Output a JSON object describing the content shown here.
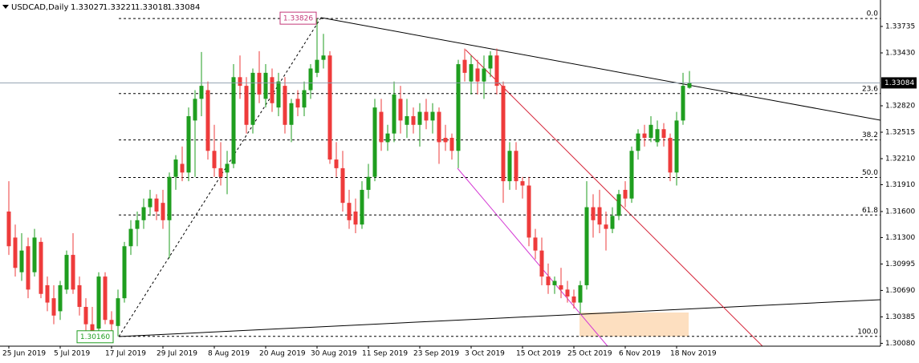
{
  "chart_data": {
    "type": "candlestick",
    "symbol": "USDCAD,Daily",
    "categories": [
      "25 Jun 2019",
      null,
      null,
      null,
      null,
      null,
      null,
      null,
      "5 Jul 2019",
      null,
      null,
      null,
      null,
      null,
      null,
      null,
      "17 Jul 2019",
      null,
      null,
      null,
      null,
      null,
      null,
      null,
      "29 Jul 2019",
      null,
      null,
      null,
      null,
      null,
      null,
      null,
      "8 Aug 2019",
      null,
      null,
      null,
      null,
      null,
      null,
      null,
      "20 Aug 2019",
      null,
      null,
      null,
      null,
      null,
      null,
      null,
      "30 Aug 2019",
      null,
      null,
      null,
      null,
      null,
      null,
      null,
      "11 Sep 2019",
      null,
      null,
      null,
      null,
      null,
      null,
      null,
      "23 Sep 2019",
      null,
      null,
      null,
      null,
      null,
      null,
      null,
      "3 Oct 2019",
      null,
      null,
      null,
      null,
      null,
      null,
      null,
      "15 Oct 2019",
      null,
      null,
      null,
      null,
      null,
      null,
      null,
      "25 Oct 2019",
      null,
      null,
      null,
      null,
      null,
      null,
      null,
      "6 Nov 2019",
      null,
      null,
      null,
      null,
      null,
      null,
      null,
      "18 Nov 2019",
      null,
      null
    ],
    "open": [
      1.316,
      1.313,
      1.309,
      1.312,
      1.309,
      1.3125,
      1.3075,
      1.306,
      1.3045,
      1.307,
      1.311,
      1.3075,
      1.305,
      1.303,
      1.3025,
      1.3085,
      1.3035,
      1.3028,
      1.306,
      1.312,
      1.314,
      1.315,
      1.3165,
      1.3175,
      1.317,
      1.315,
      1.32,
      1.3215,
      1.3205,
      1.3265,
      1.329,
      1.33,
      1.323,
      1.321,
      1.3205,
      1.3215,
      1.3315,
      1.3305,
      1.326,
      1.332,
      1.329,
      1.3315,
      1.328,
      1.3305,
      1.326,
      1.329,
      1.328,
      1.33,
      1.332,
      1.3335,
      1.334,
      1.322,
      1.321,
      1.317,
      1.316,
      1.3145,
      1.3185,
      1.32,
      1.3275,
      1.324,
      1.325,
      1.329,
      1.326,
      1.327,
      1.326,
      1.3275,
      1.3265,
      1.3275,
      1.3245,
      1.3245,
      1.323,
      1.3335,
      1.331,
      1.3325,
      1.331,
      1.3325,
      1.334,
      1.3305,
      1.3195,
      1.323,
      1.3195,
      1.319,
      1.313,
      1.3115,
      1.3085,
      1.3075,
      1.3075,
      1.307,
      1.3062,
      1.3055,
      1.3075,
      1.3165,
      1.3165,
      1.3145,
      1.314,
      1.3155,
      1.3185,
      1.3175,
      1.323,
      1.325,
      1.3245,
      1.324,
      1.3255,
      1.3245,
      1.3205,
      1.3265,
      1.33027
    ],
    "high": [
      1.3195,
      1.3145,
      1.3135,
      1.313,
      1.314,
      1.313,
      1.3085,
      1.3075,
      1.308,
      1.3115,
      1.3135,
      1.3085,
      1.306,
      1.305,
      1.309,
      1.309,
      1.3045,
      1.307,
      1.3125,
      1.315,
      1.316,
      1.3175,
      1.3185,
      1.318,
      1.3185,
      1.3205,
      1.3225,
      1.3235,
      1.328,
      1.33,
      1.3344,
      1.331,
      1.326,
      1.324,
      1.323,
      1.333,
      1.334,
      1.3315,
      1.3325,
      1.3345,
      1.333,
      1.3325,
      1.332,
      1.3315,
      1.329,
      1.33,
      1.331,
      1.333,
      1.33826,
      1.3365,
      1.3345,
      1.324,
      1.323,
      1.3185,
      1.3175,
      1.3195,
      1.3215,
      1.329,
      1.329,
      1.326,
      1.331,
      1.3305,
      1.329,
      1.328,
      1.3285,
      1.329,
      1.3285,
      1.328,
      1.326,
      1.325,
      1.3335,
      1.3348,
      1.334,
      1.3335,
      1.334,
      1.3345,
      1.3348,
      1.331,
      1.324,
      1.324,
      1.32,
      1.32,
      1.314,
      1.313,
      1.31,
      1.3085,
      1.3095,
      1.308,
      1.307,
      1.308,
      1.3195,
      1.318,
      1.3185,
      1.316,
      1.3165,
      1.3185,
      1.3195,
      1.3235,
      1.3255,
      1.326,
      1.327,
      1.3265,
      1.3262,
      1.325,
      1.3275,
      1.332,
      1.33221
    ],
    "low": [
      1.311,
      1.3085,
      1.308,
      1.306,
      1.3085,
      1.306,
      1.3045,
      1.303,
      1.3035,
      1.3065,
      1.3065,
      1.304,
      1.302,
      1.3018,
      1.302,
      1.303,
      1.3022,
      1.3016,
      1.3055,
      1.311,
      1.312,
      1.314,
      1.3155,
      1.315,
      1.314,
      1.3106,
      1.3185,
      1.3195,
      1.3195,
      1.32,
      1.327,
      1.322,
      1.32,
      1.319,
      1.318,
      1.321,
      1.329,
      1.325,
      1.325,
      1.3285,
      1.328,
      1.3275,
      1.327,
      1.325,
      1.324,
      1.327,
      1.327,
      1.329,
      1.3315,
      1.3325,
      1.3215,
      1.32,
      1.316,
      1.314,
      1.3135,
      1.314,
      1.3175,
      1.3195,
      1.323,
      1.323,
      1.324,
      1.325,
      1.3245,
      1.325,
      1.3235,
      1.3255,
      1.325,
      1.3215,
      1.323,
      1.322,
      1.321,
      1.331,
      1.3295,
      1.3295,
      1.329,
      1.3315,
      1.3295,
      1.317,
      1.3185,
      1.3185,
      1.3175,
      1.312,
      1.3105,
      1.3075,
      1.3065,
      1.3065,
      1.306,
      1.3055,
      1.3048,
      1.3042,
      1.307,
      1.313,
      1.3135,
      1.3115,
      1.3135,
      1.315,
      1.3165,
      1.317,
      1.322,
      1.3235,
      1.324,
      1.3235,
      1.3235,
      1.3195,
      1.319,
      1.326,
      1.33018
    ],
    "close": [
      1.312,
      1.3095,
      1.3115,
      1.307,
      1.313,
      1.3065,
      1.3055,
      1.304,
      1.3075,
      1.311,
      1.307,
      1.305,
      1.303,
      1.3022,
      1.3085,
      1.3035,
      1.303,
      1.306,
      1.312,
      1.314,
      1.315,
      1.3165,
      1.3175,
      1.316,
      1.315,
      1.32,
      1.322,
      1.3205,
      1.327,
      1.329,
      1.3305,
      1.323,
      1.321,
      1.32,
      1.3215,
      1.3315,
      1.3305,
      1.326,
      1.332,
      1.3295,
      1.332,
      1.3285,
      1.331,
      1.326,
      1.3285,
      1.328,
      1.33,
      1.3325,
      1.3335,
      1.334,
      1.322,
      1.321,
      1.317,
      1.315,
      1.3145,
      1.3185,
      1.32,
      1.328,
      1.324,
      1.325,
      1.3295,
      1.3265,
      1.327,
      1.326,
      1.3275,
      1.3265,
      1.3275,
      1.324,
      1.324,
      1.323,
      1.333,
      1.332,
      1.333,
      1.331,
      1.3325,
      1.334,
      1.3305,
      1.3195,
      1.323,
      1.3195,
      1.319,
      1.313,
      1.3115,
      1.3085,
      1.3075,
      1.308,
      1.307,
      1.3062,
      1.3055,
      1.3075,
      1.3165,
      1.315,
      1.3145,
      1.314,
      1.3155,
      1.318,
      1.3175,
      1.323,
      1.325,
      1.3245,
      1.326,
      1.3255,
      1.3245,
      1.3205,
      1.3265,
      1.3305,
      1.33084
    ],
    "up_color": "#1f9e1f",
    "down_color": "#ee3b3b",
    "ylim": [
      1.30047,
      1.3404
    ],
    "yticks": [
      {
        "value": 1.33735,
        "label": "1.33735"
      },
      {
        "value": 1.3343,
        "label": "1.33430"
      },
      {
        "value": 1.3282,
        "label": "1.32820"
      },
      {
        "value": 1.32515,
        "label": "1.32515"
      },
      {
        "value": 1.3221,
        "label": "1.32210"
      },
      {
        "value": 1.3191,
        "label": "1.31910"
      },
      {
        "value": 1.316,
        "label": "1.31600"
      },
      {
        "value": 1.313,
        "label": "1.31300"
      },
      {
        "value": 1.30995,
        "label": "1.30995"
      },
      {
        "value": 1.3069,
        "label": "1.30690"
      },
      {
        "value": 1.30385,
        "label": "1.30385"
      },
      {
        "value": 1.3008,
        "label": "1.30080"
      }
    ],
    "fib": {
      "high": 1.33826,
      "low": {
        "value": 1.3016,
        "label": "1.30160"
      },
      "levels": [
        {
          "value": 0,
          "label": "0.0"
        },
        23.6,
        38.2,
        {
          "value": 50,
          "label": "50.0"
        },
        61.8,
        {
          "value": 100,
          "label": "100.0"
        }
      ]
    }
  }
}
